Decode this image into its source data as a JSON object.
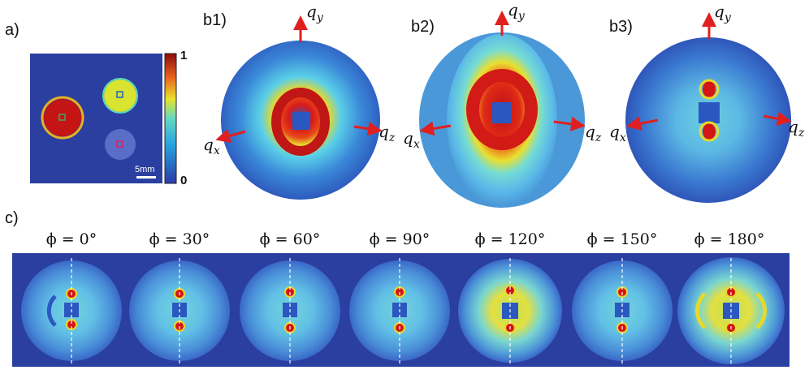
{
  "panels": {
    "a": "a)",
    "b1": "b1)",
    "b2": "b2)",
    "b3": "b3)",
    "c": "c)"
  },
  "colorbar": {
    "max": "1",
    "min": "0"
  },
  "scalebar": "5mm",
  "axes": {
    "q": "q",
    "x": "x",
    "y": "y",
    "z": "z"
  },
  "phi_labels": [
    "ϕ = 0°",
    "ϕ = 30°",
    "ϕ = 60°",
    "ϕ = 90°",
    "ϕ = 120°",
    "ϕ = 150°",
    "ϕ = 180°"
  ],
  "colors": {
    "background": "#2a3fa0",
    "arrow": "#e02020",
    "hot": "#d41515",
    "cold": "#2740a8"
  }
}
